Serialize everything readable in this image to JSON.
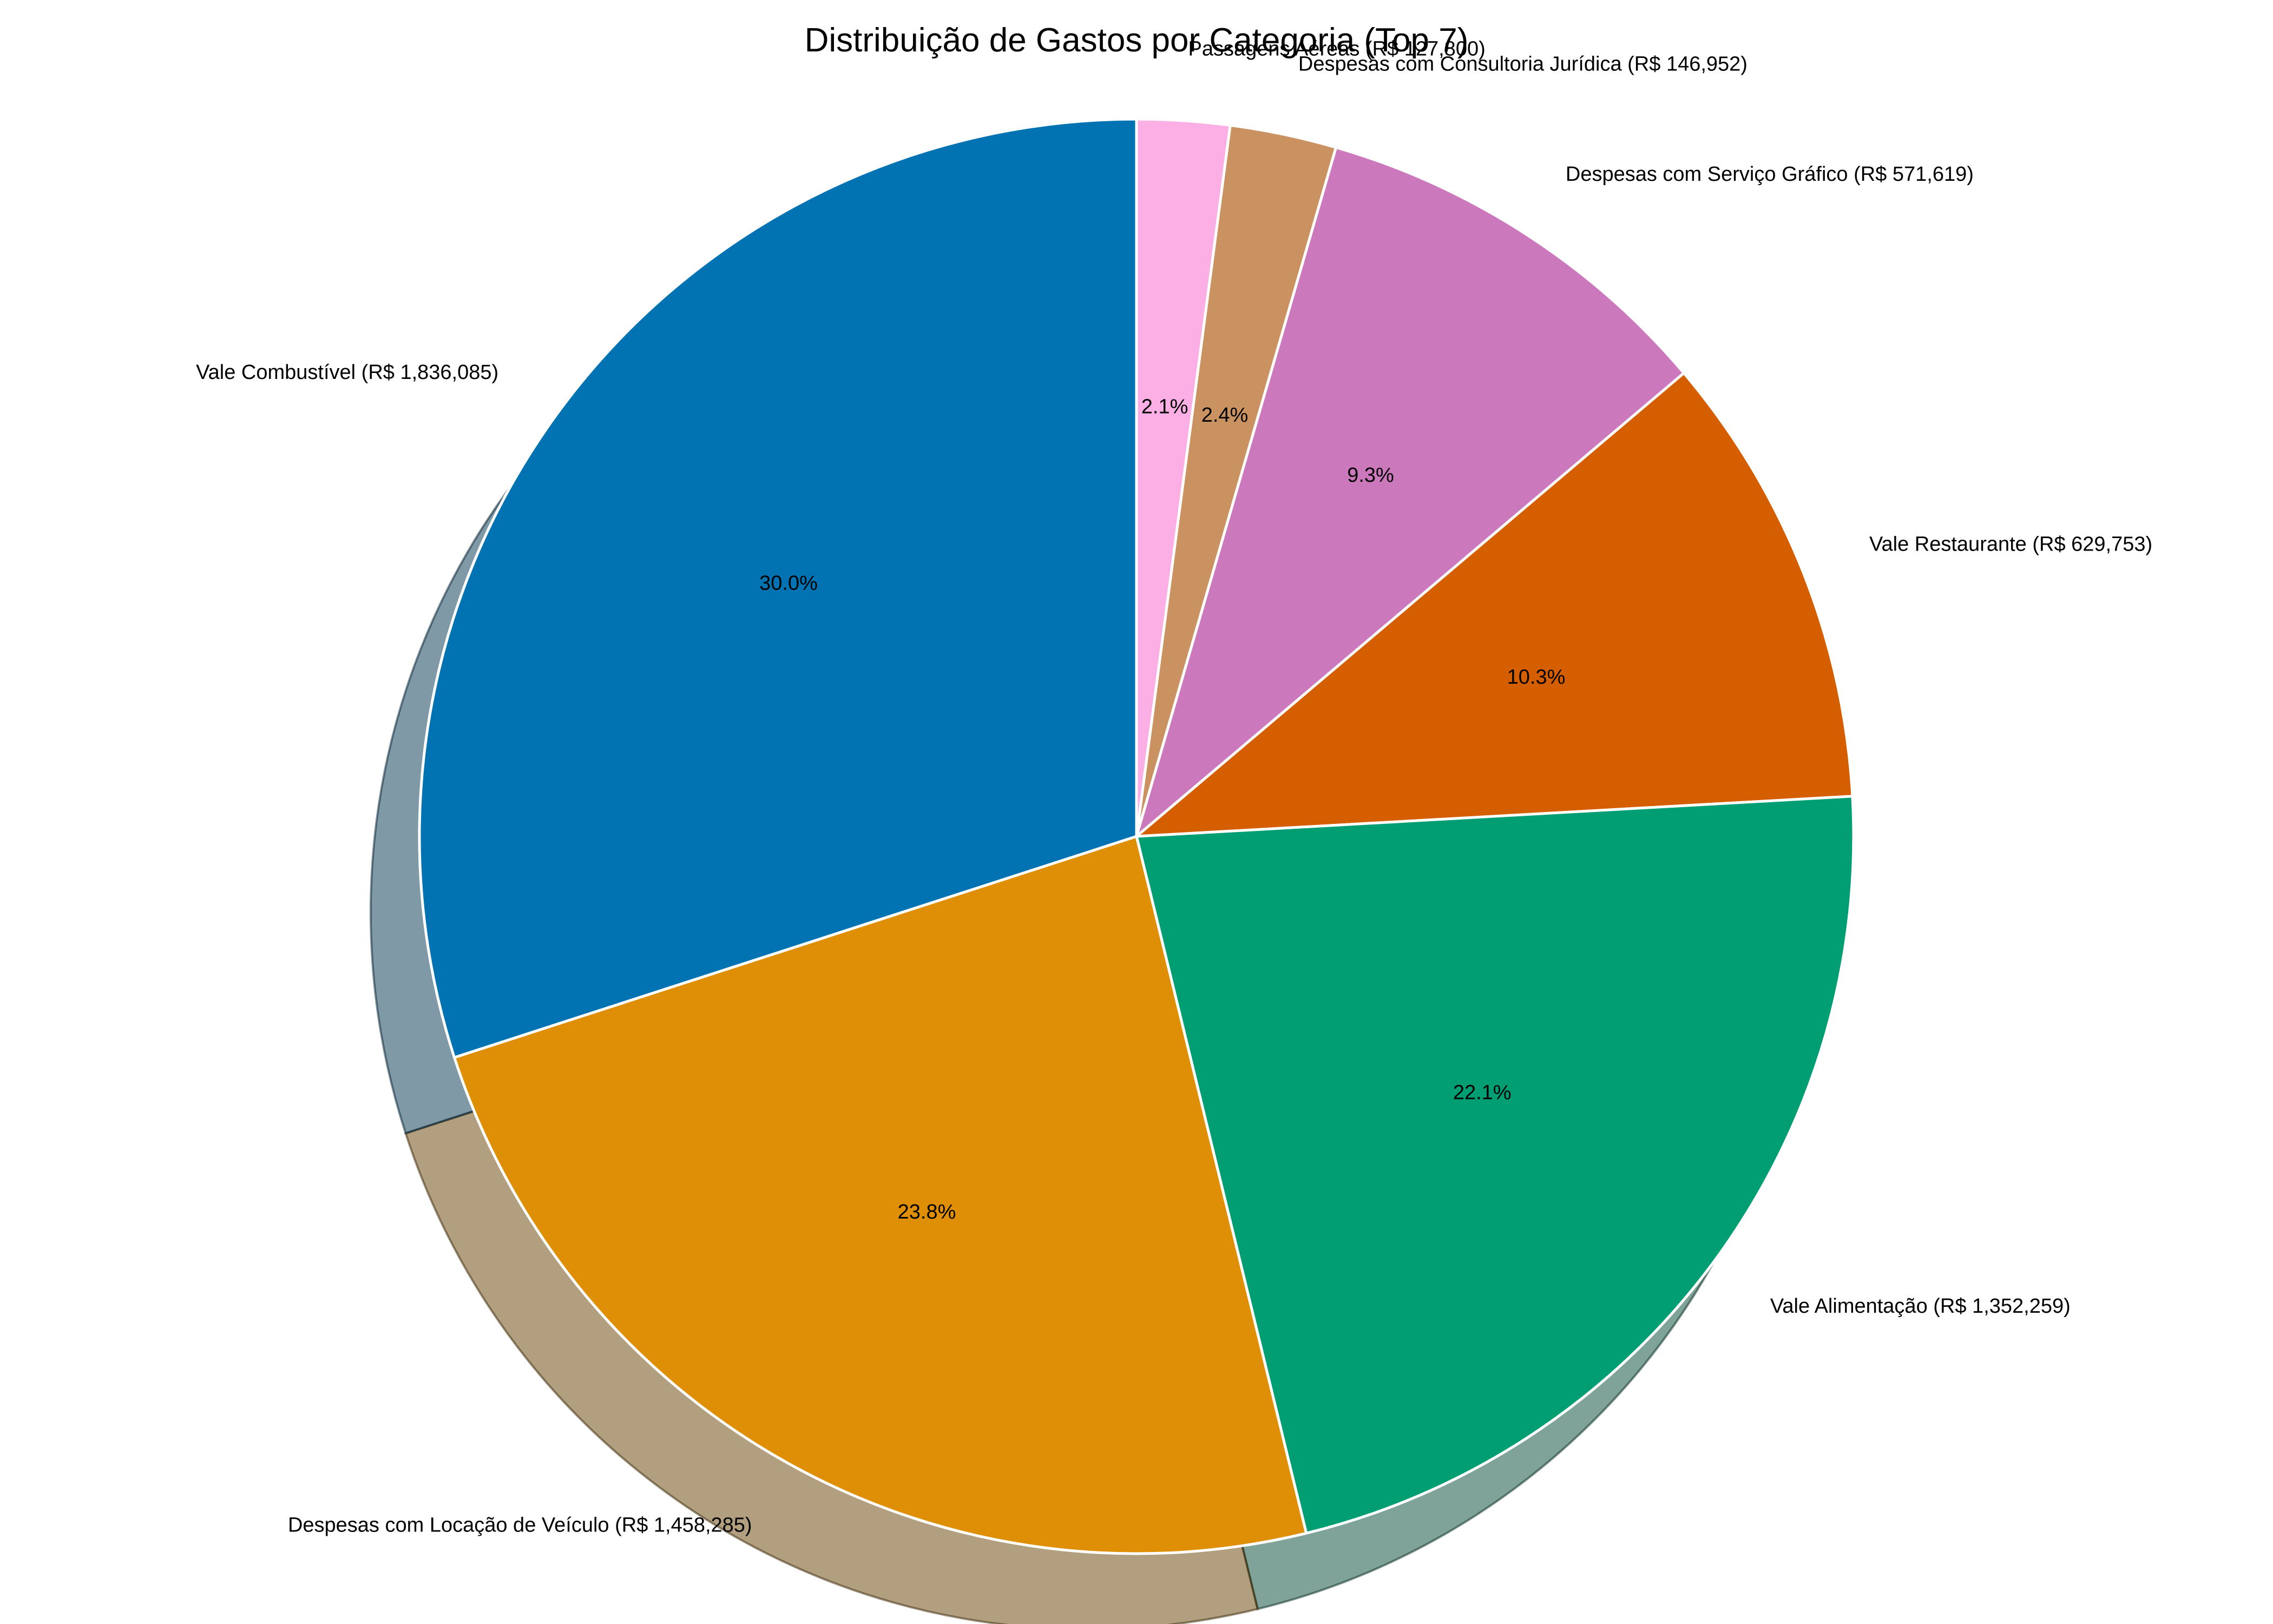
{
  "chart_data": {
    "type": "pie",
    "title": "Distribuição de Gastos por Categoria (Top 7)",
    "start_angle_deg": 90,
    "direction": "clockwise",
    "shadow": true,
    "categories": [
      "Passagens Aéreas",
      "Despesas com Consultoria Jurídica",
      "Despesas com Serviço Gráfico",
      "Vale Restaurante",
      "Vale Alimentação",
      "Despesas com Locação de Veículo",
      "Vale Combustível"
    ],
    "values": [
      127800,
      146952,
      571619,
      629753,
      1352259,
      1458285,
      1836085
    ],
    "labels": [
      "Passagens Aéreas (R$ 127,800)",
      "Despesas com Consultoria Jurídica (R$ 146,952)",
      "Despesas com Serviço Gráfico (R$ 571,619)",
      "Vale Restaurante (R$ 629,753)",
      "Vale Alimentação (R$ 1,352,259)",
      "Despesas com Locação de Veículo (R$ 1,458,285)",
      "Vale Combustível (R$ 1,836,085)"
    ],
    "percent_labels": [
      "2.1%",
      "2.4%",
      "9.3%",
      "10.3%",
      "22.1%",
      "23.8%",
      "30.0%"
    ],
    "colors": [
      "#fbafe4",
      "#ca9161",
      "#cc78bc",
      "#d55e00",
      "#029e73",
      "#de8f05",
      "#0173b2"
    ]
  }
}
